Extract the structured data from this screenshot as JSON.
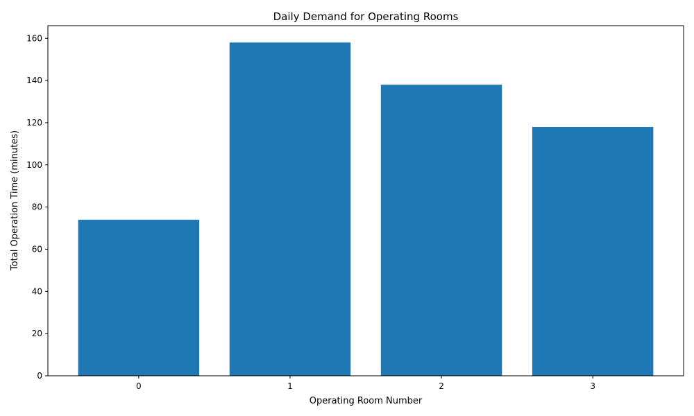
{
  "chart_data": {
    "type": "bar",
    "title": "Daily Demand for Operating Rooms",
    "xlabel": "Operating Room Number",
    "ylabel": "Total Operation Time (minutes)",
    "categories": [
      "0",
      "1",
      "2",
      "3"
    ],
    "values": [
      74,
      158,
      138,
      118
    ],
    "ylim": [
      0,
      166
    ],
    "yticks": [
      0,
      20,
      40,
      60,
      80,
      100,
      120,
      140,
      160
    ],
    "bar_color": "#1f77b4",
    "grid": false,
    "legend": "none"
  }
}
